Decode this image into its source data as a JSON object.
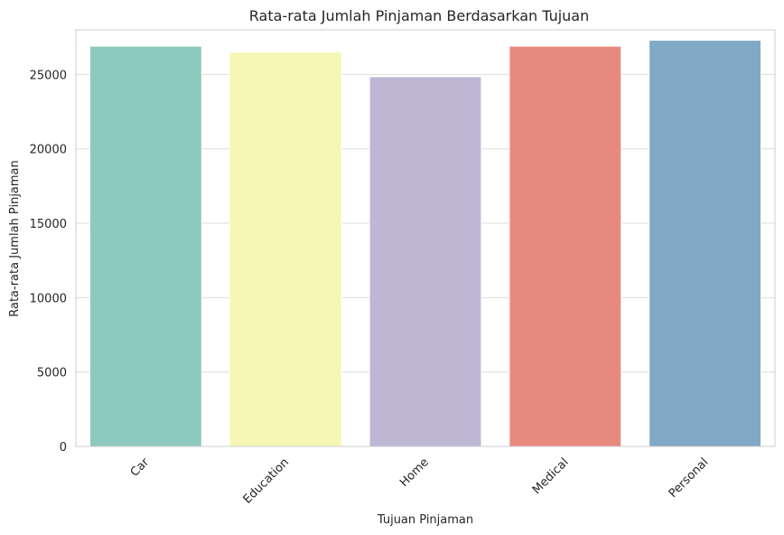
{
  "chart_data": {
    "type": "bar",
    "title": "Rata-rata Jumlah Pinjaman Berdasarkan Tujuan",
    "xlabel": "Tujuan Pinjaman",
    "ylabel": "Rata-rata Jumlah Pinjaman",
    "categories": [
      "Car",
      "Education",
      "Home",
      "Medical",
      "Personal"
    ],
    "values": [
      26900,
      26500,
      24850,
      26900,
      27300
    ],
    "colors": [
      "#8dc9bd",
      "#f6f6b4",
      "#bdb7d4",
      "#e8897f",
      "#81a9c6"
    ],
    "ylim": [
      0,
      28000
    ],
    "yticks": [
      0,
      5000,
      10000,
      15000,
      20000,
      25000
    ],
    "grid": "horizontal",
    "legend": "none"
  }
}
